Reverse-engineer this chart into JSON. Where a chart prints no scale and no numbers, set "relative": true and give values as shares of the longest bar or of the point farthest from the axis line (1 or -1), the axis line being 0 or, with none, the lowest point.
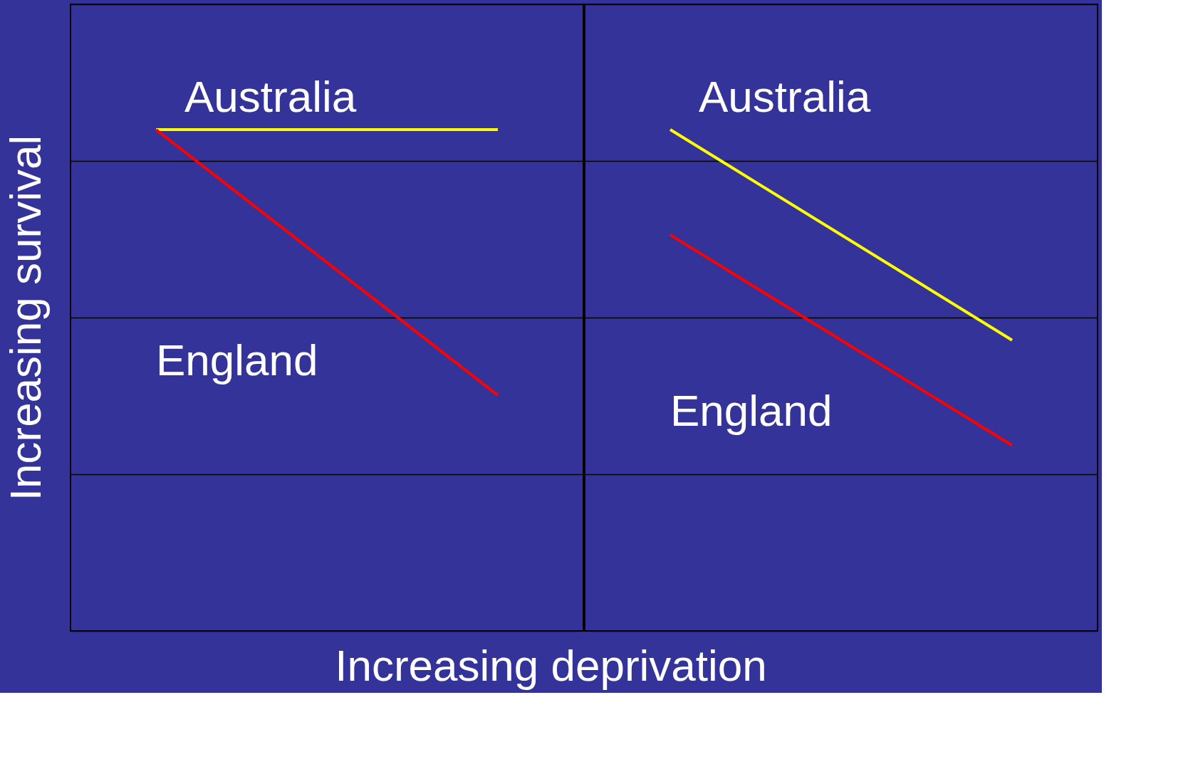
{
  "chart_data": [
    {
      "type": "line",
      "relative": true,
      "grid": "y",
      "ylabel": "Increasing survival",
      "xlabel": "Increasing deprivation",
      "categories": [
        null,
        null
      ],
      "series": [
        {
          "name": "Australia",
          "color": "#ffff00",
          "values": [
            1,
            1
          ]
        },
        {
          "name": "England",
          "color": "#ff0000",
          "values": [
            1,
            0.47
          ]
        }
      ]
    },
    {
      "type": "line",
      "relative": true,
      "grid": "y",
      "categories": [
        null,
        null
      ],
      "series": [
        {
          "name": "Australia",
          "color": "#ffff00",
          "values": [
            1,
            0.58
          ]
        },
        {
          "name": "England",
          "color": "#ff0000",
          "values": [
            0.79,
            0.37
          ]
        }
      ]
    }
  ]
}
